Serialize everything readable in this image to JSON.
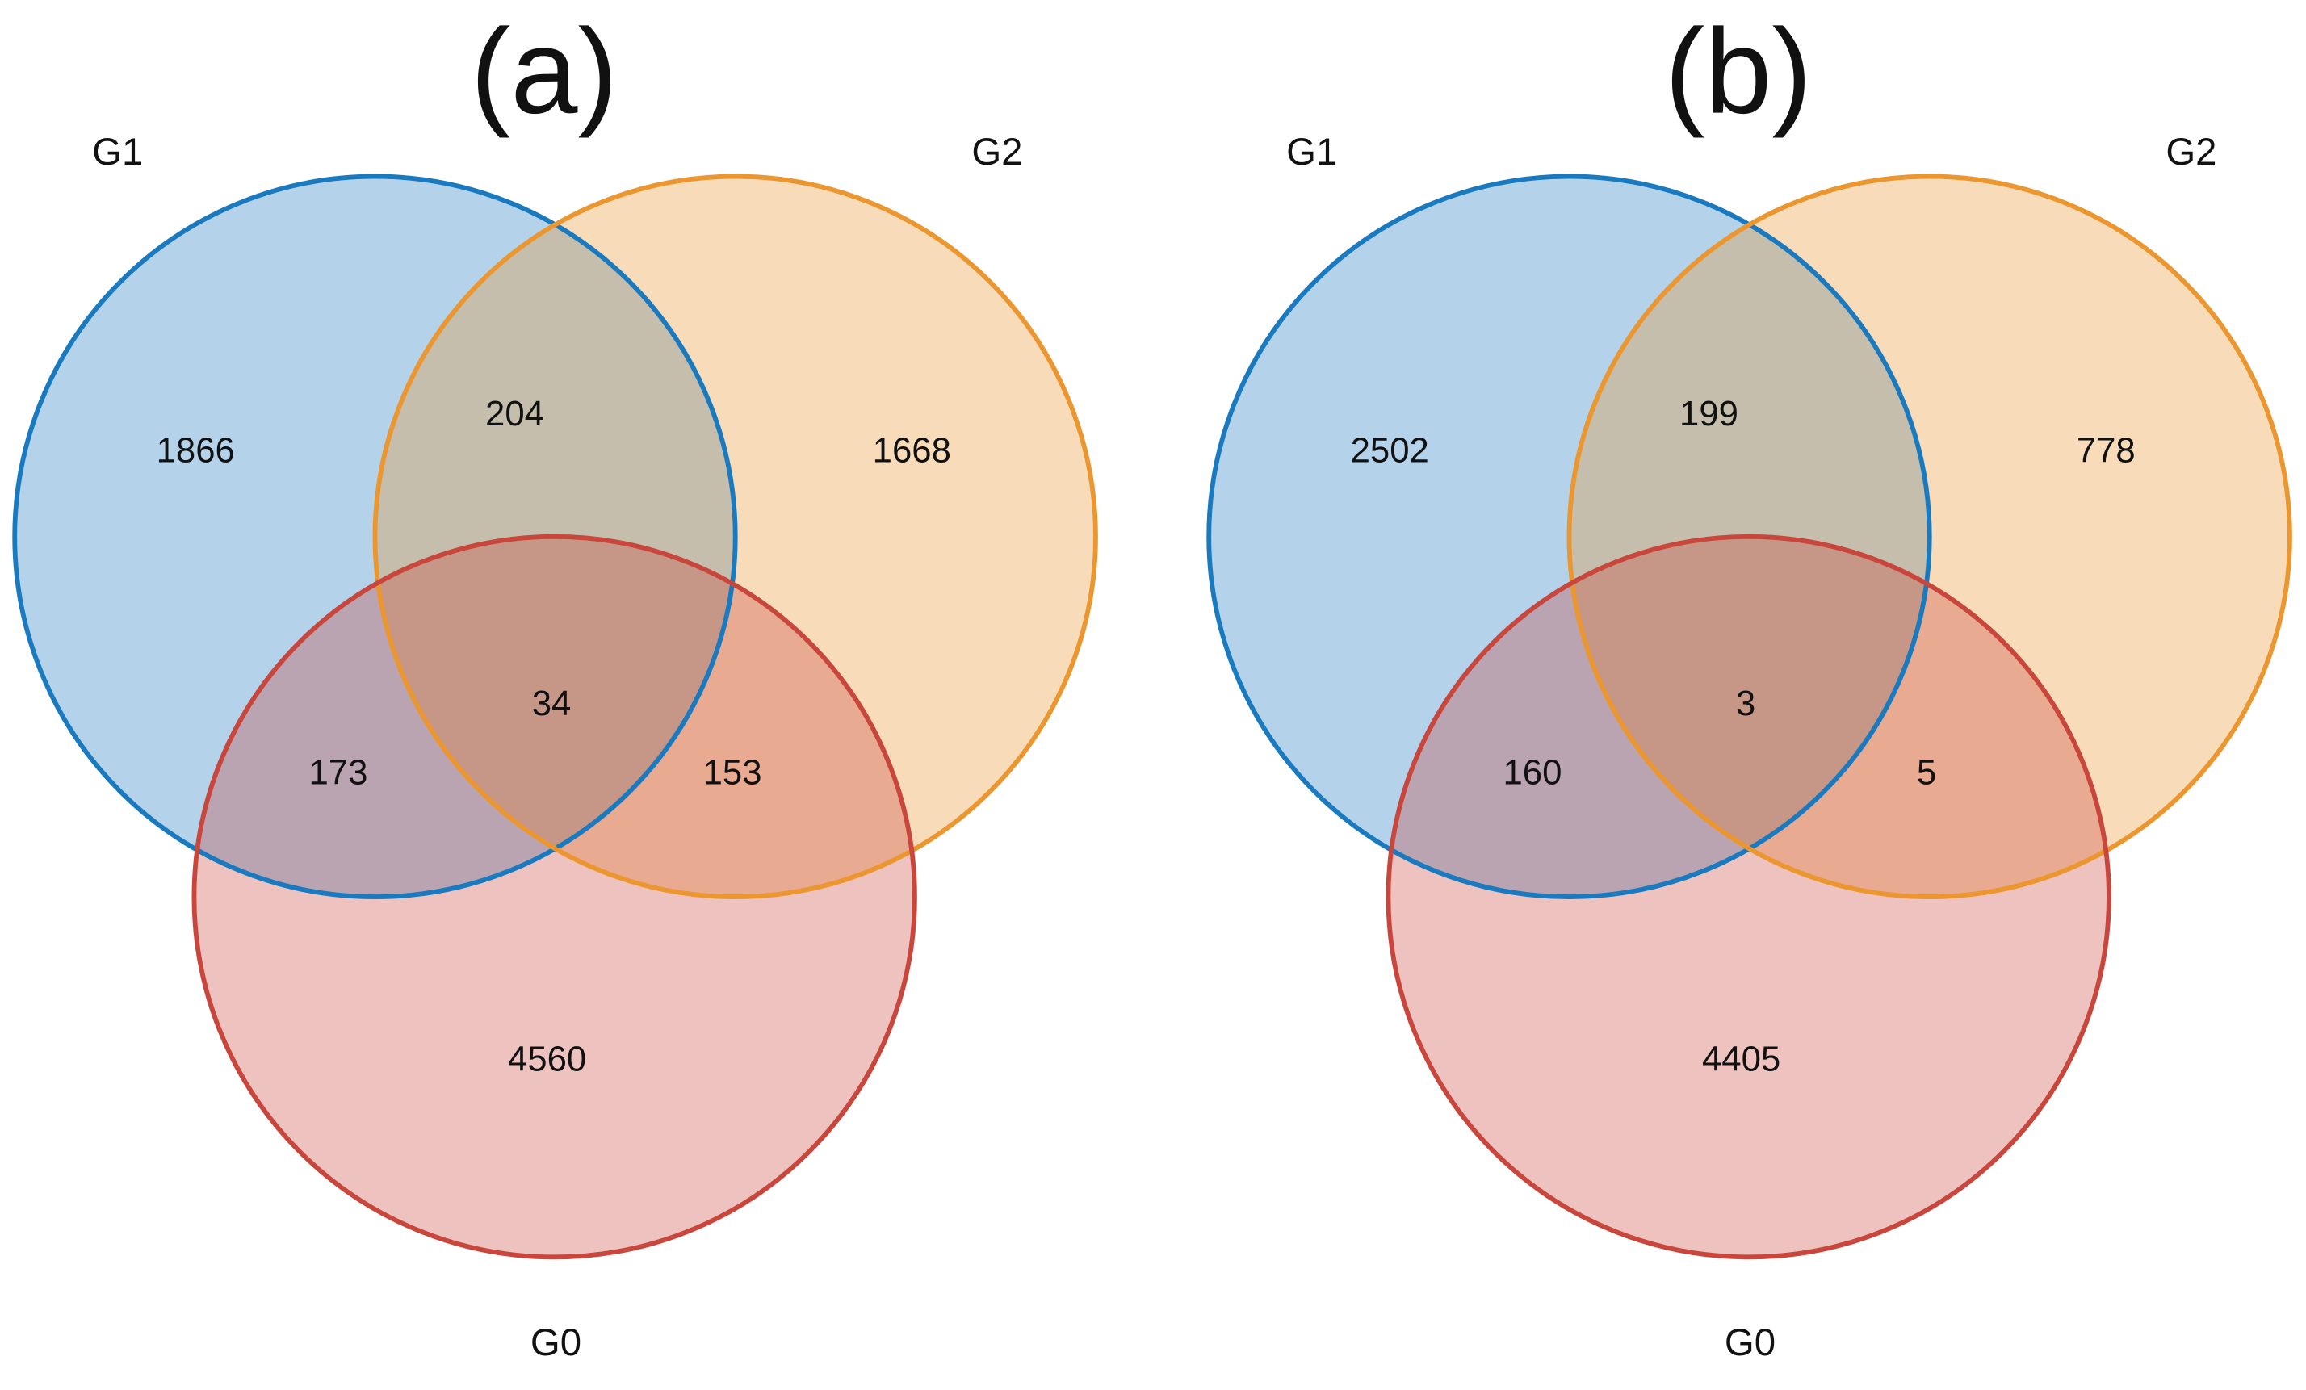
{
  "chart_data": [
    {
      "type": "venn",
      "title": "(a)",
      "sets": [
        {
          "name": "G1",
          "color": "#1a7abf"
        },
        {
          "name": "G2",
          "color": "#eb962f"
        },
        {
          "name": "G0",
          "color": "#c9463d"
        }
      ],
      "values": [
        1866,
        204,
        1668,
        173,
        34,
        153,
        4560
      ]
    },
    {
      "type": "venn",
      "title": "(b)",
      "sets": [
        {
          "name": "G1",
          "color": "#1a7abf"
        },
        {
          "name": "G2",
          "color": "#eb962f"
        },
        {
          "name": "G0",
          "color": "#c9463d"
        }
      ],
      "values": [
        2502,
        199,
        778,
        160,
        3,
        5,
        4405
      ]
    }
  ]
}
